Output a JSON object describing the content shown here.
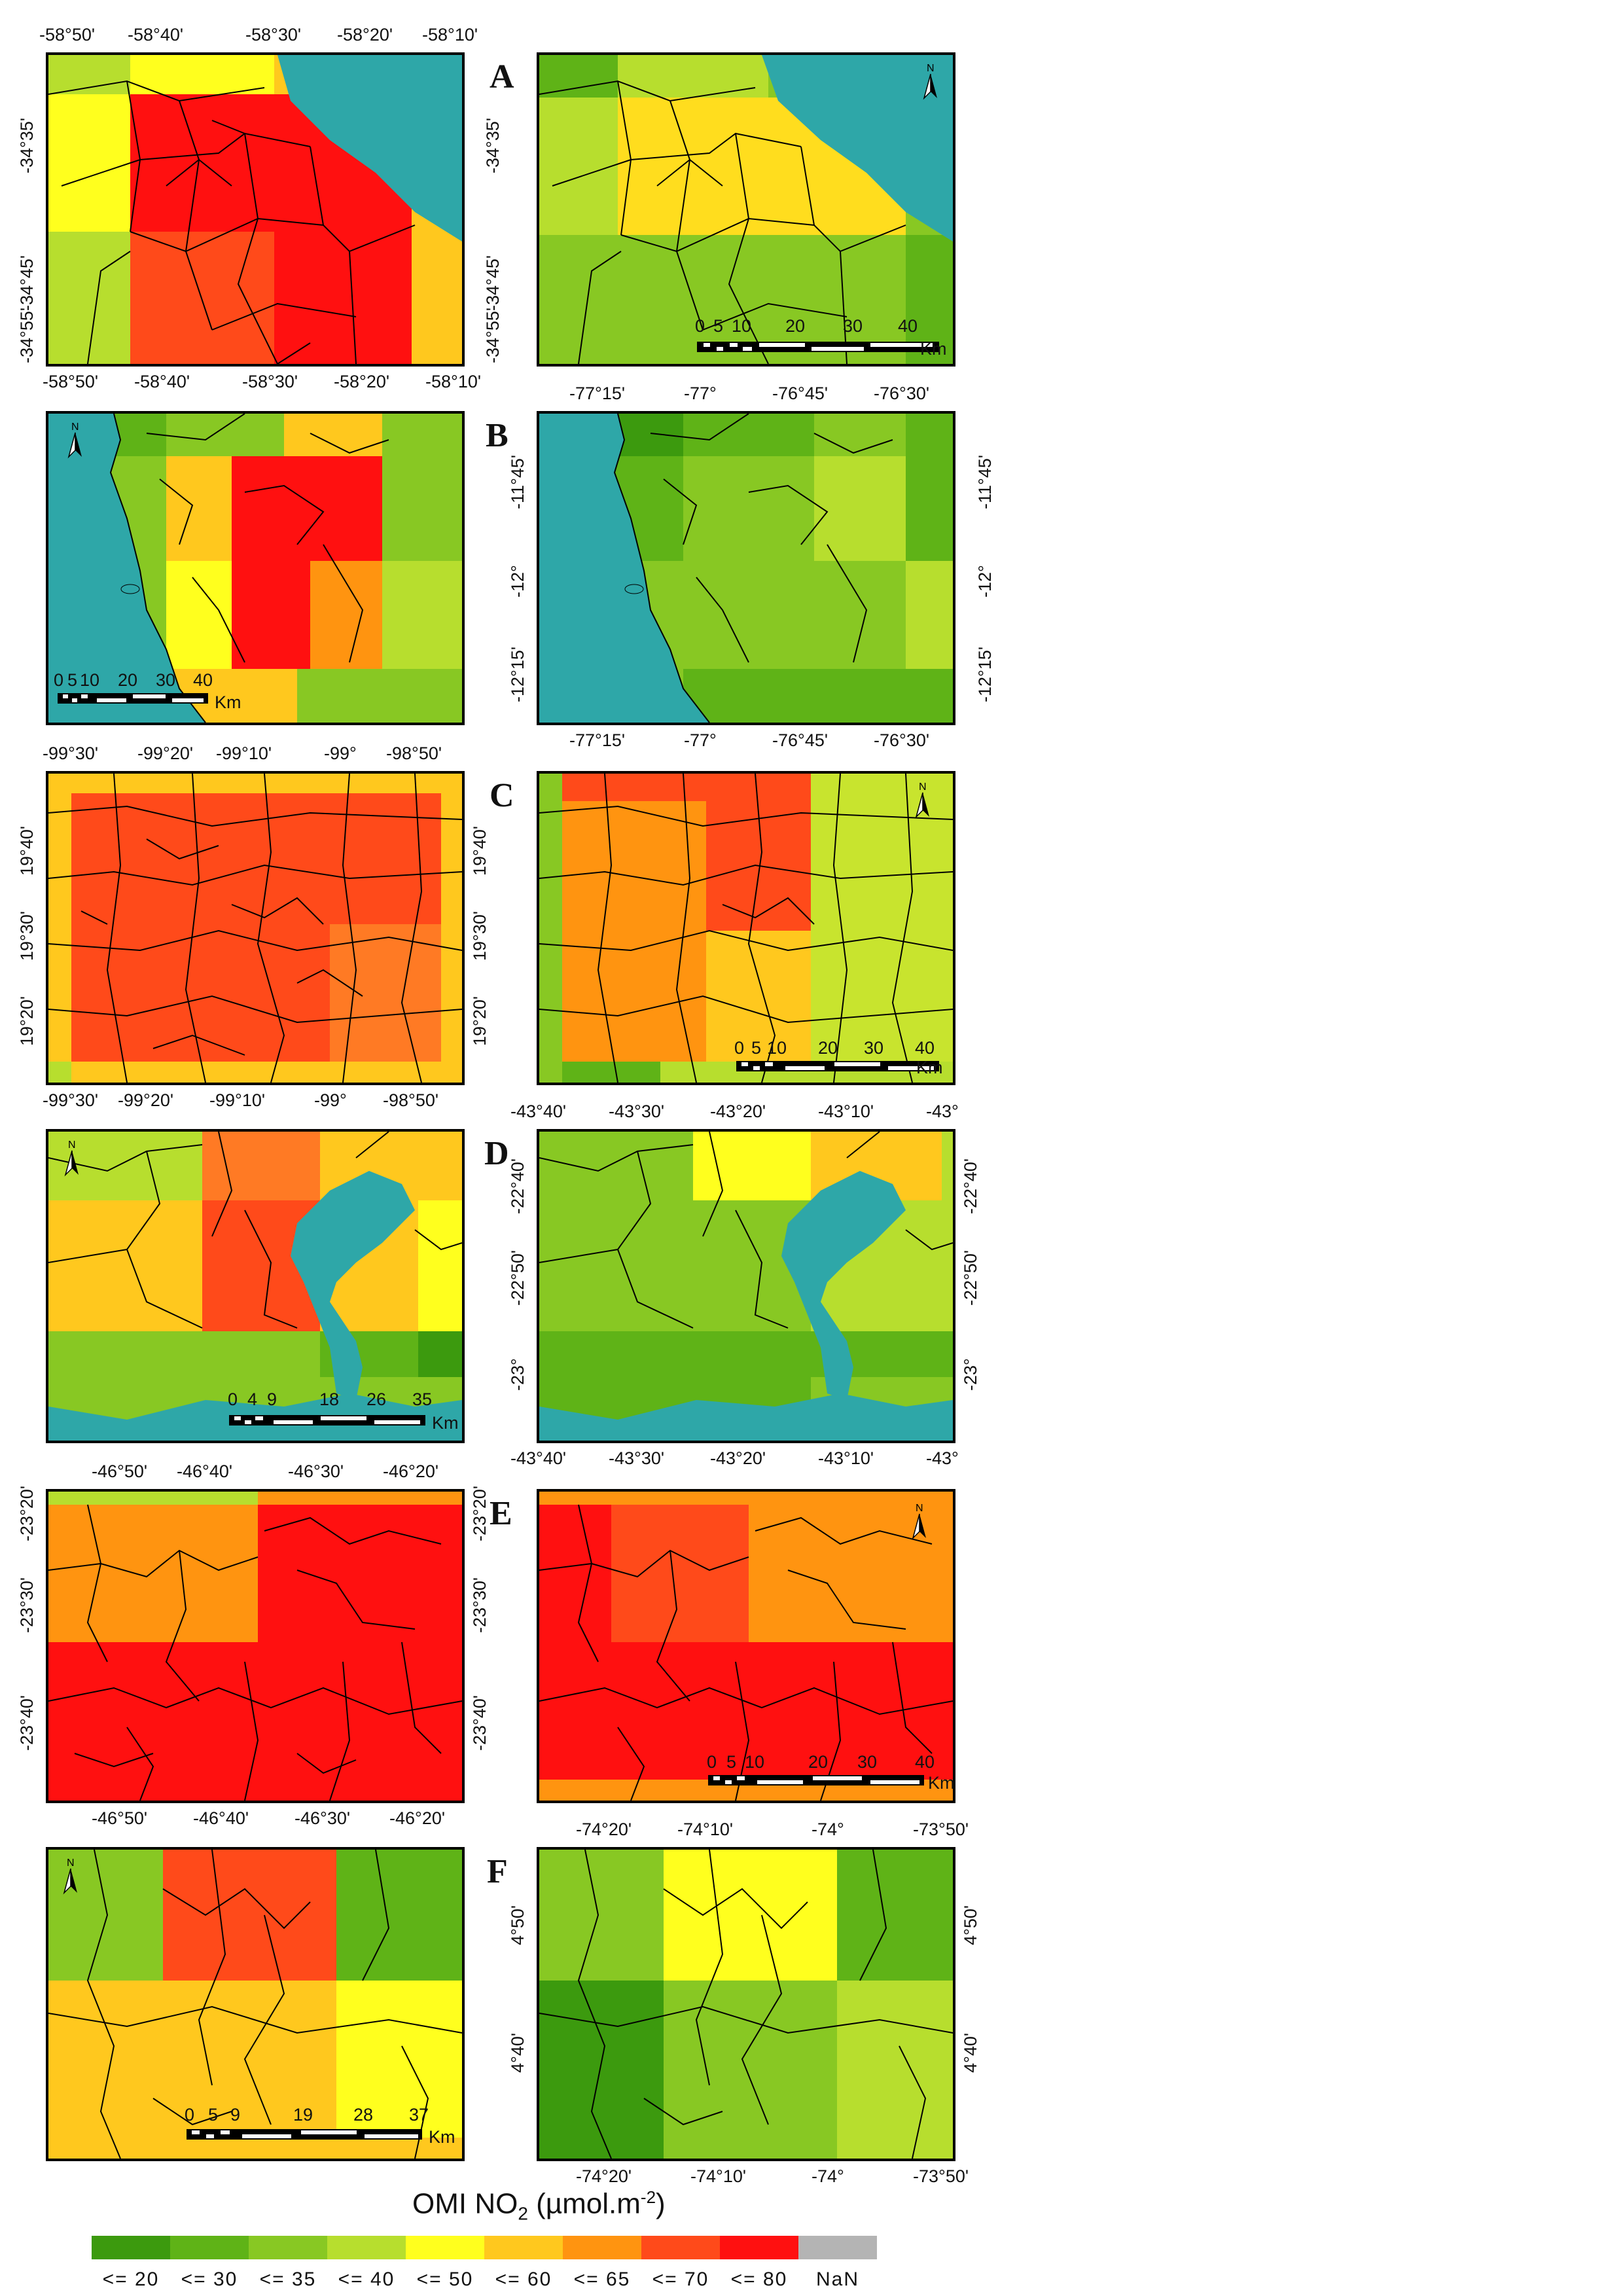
{
  "legend": {
    "title": "OMI NO",
    "title_sub": "2",
    "title_unit": " (µmol.m",
    "title_sup": "-2",
    "title_close": ")",
    "classes": [
      {
        "label": "<= 20",
        "color": "#3c9a0e"
      },
      {
        "label": "<= 30",
        "color": "#5fb317"
      },
      {
        "label": "<= 35",
        "color": "#88c823"
      },
      {
        "label": "<= 40",
        "color": "#b7de2e"
      },
      {
        "label": "<= 50",
        "color": "#ffff1e"
      },
      {
        "label": "<= 60",
        "color": "#ffc81e"
      },
      {
        "label": "<= 65",
        "color": "#ff9410"
      },
      {
        "label": "<= 70",
        "color": "#ff4a1a"
      },
      {
        "label": "<= 80",
        "color": "#ff1010"
      },
      {
        "label": "NaN",
        "color": "#b4b4b4"
      }
    ]
  },
  "colors": {
    "water": "#2ea7a8",
    "boundary": "#000000"
  },
  "panels": [
    {
      "id": "A",
      "letter": "A",
      "left": {
        "top_ticks": [
          "-58°50'",
          "-58°40'",
          "-58°30'",
          "-58°20'",
          "-58°10'"
        ],
        "bottom_ticks": [
          "-58°50'",
          "-58°40'",
          "-58°30'",
          "-58°20'",
          "-58°10'"
        ],
        "left_ticks": [
          "-34°35'",
          "-34°45'",
          "-34°55'"
        ],
        "right_ticks": [
          "-34°35'",
          "-34°45'",
          "-34°55'"
        ]
      },
      "right": {
        "scale": [
          "0",
          "5",
          "10",
          "20",
          "30",
          "40"
        ],
        "scale_unit": "Km",
        "north": "N"
      }
    },
    {
      "id": "B",
      "letter": "B",
      "left": {
        "scale": [
          "0",
          "5",
          "10",
          "20",
          "30",
          "40"
        ],
        "scale_unit": "Km",
        "north": "N"
      },
      "right": {
        "top_ticks": [
          "-77°15'",
          "-77°",
          "-76°45'",
          "-76°30'"
        ],
        "bottom_ticks": [
          "-77°15'",
          "-77°",
          "-76°45'",
          "-76°30'"
        ],
        "left_ticks": [
          "-11°45'",
          "-12°",
          "-12°15'"
        ],
        "right_ticks": [
          "-11°45'",
          "-12°",
          "-12°15'"
        ]
      }
    },
    {
      "id": "C",
      "letter": "C",
      "left": {
        "top_ticks": [
          "-99°30'",
          "-99°20'",
          "-99°10'",
          "-99°",
          "-98°50'"
        ],
        "bottom_ticks": [
          "-99°30'",
          "-99°20'",
          "-99°10'",
          "-99°",
          "-98°50'"
        ],
        "left_ticks": [
          "19°40'",
          "19°30'",
          "19°20'"
        ],
        "right_ticks": [
          "19°40'",
          "19°30'",
          "19°20'"
        ]
      },
      "right": {
        "scale": [
          "0",
          "5",
          "10",
          "20",
          "30",
          "40"
        ],
        "scale_unit": "Km",
        "north": "N"
      }
    },
    {
      "id": "D",
      "letter": "D",
      "left": {
        "scale": [
          "0",
          "4",
          "9",
          "18",
          "26",
          "35"
        ],
        "scale_unit": "Km",
        "north": "N"
      },
      "right": {
        "top_ticks": [
          "-43°40'",
          "-43°30'",
          "-43°20'",
          "-43°10'",
          "-43°"
        ],
        "bottom_ticks": [
          "-43°40'",
          "-43°30'",
          "-43°20'",
          "-43°10'",
          "-43°"
        ],
        "left_ticks": [
          "-22°40'",
          "-22°50'",
          "-23°"
        ],
        "right_ticks": [
          "-22°40'",
          "-22°50'",
          "-23°"
        ]
      }
    },
    {
      "id": "E",
      "letter": "E",
      "left": {
        "top_ticks": [
          "-46°50'",
          "-46°40'",
          "-46°30'",
          "-46°20'"
        ],
        "bottom_ticks": [
          "-46°50'",
          "-46°40'",
          "-46°30'",
          "-46°20'"
        ],
        "left_ticks": [
          "-23°20'",
          "-23°30'",
          "-23°40'"
        ],
        "right_ticks": [
          "-23°20'",
          "-23°30'",
          "-23°40'"
        ]
      },
      "right": {
        "scale": [
          "0",
          "5",
          "10",
          "20",
          "30",
          "40"
        ],
        "scale_unit": "Km",
        "north": "N"
      }
    },
    {
      "id": "F",
      "letter": "F",
      "left": {
        "scale": [
          "0",
          "5",
          "9",
          "19",
          "28",
          "37"
        ],
        "scale_unit": "Km",
        "north": "N"
      },
      "right": {
        "top_ticks": [
          "-74°20'",
          "-74°10'",
          "-74°",
          "-73°50'"
        ],
        "bottom_ticks": [
          "-74°20'",
          "-74°10'",
          "-74°",
          "-73°50'"
        ],
        "left_ticks": [
          "4°50'",
          "4°40'"
        ],
        "right_ticks": [
          "4°50'",
          "4°40'"
        ]
      }
    }
  ]
}
